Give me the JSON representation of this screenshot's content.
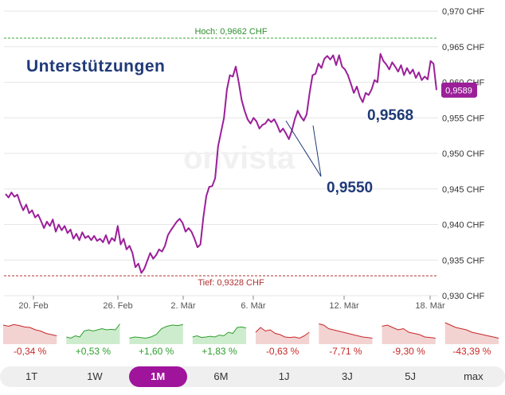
{
  "annotation": "Unterstützungen",
  "high_label": "Hoch: 0,9662 CHF",
  "low_label": "Tief: 0,9328 CHF",
  "current_label": "0,9589",
  "support_labels": [
    "0,9568",
    "0,9550"
  ],
  "watermark": "onvista",
  "chart_data": {
    "type": "line",
    "y_ticks": [
      "0,930 CHF",
      "0,935 CHF",
      "0,940 CHF",
      "0,945 CHF",
      "0,950 CHF",
      "0,955 CHF",
      "0,960 CHF",
      "0,965 CHF",
      "0,970 CHF"
    ],
    "x_ticks": [
      "20. Feb",
      "26. Feb",
      "2. Mär",
      "6. Mär",
      "12. Mär",
      "18. Mär"
    ],
    "ylim": [
      0.93,
      0.97
    ],
    "high": 0.9662,
    "low": 0.9328,
    "last": 0.9589,
    "line_color": "#9b1f99",
    "values": [
      0.9443,
      0.9438,
      0.9445,
      0.9439,
      0.9442,
      0.943,
      0.942,
      0.9428,
      0.9416,
      0.942,
      0.941,
      0.9414,
      0.9405,
      0.9395,
      0.9404,
      0.9398,
      0.9407,
      0.939,
      0.94,
      0.9392,
      0.9398,
      0.9388,
      0.9393,
      0.938,
      0.9387,
      0.9378,
      0.9389,
      0.9381,
      0.9384,
      0.9378,
      0.9384,
      0.9377,
      0.938,
      0.9375,
      0.9385,
      0.9373,
      0.9381,
      0.9377,
      0.9398,
      0.9372,
      0.938,
      0.9365,
      0.937,
      0.936,
      0.934,
      0.9345,
      0.9332,
      0.9338,
      0.9349,
      0.936,
      0.9352,
      0.9357,
      0.9365,
      0.9362,
      0.937,
      0.9385,
      0.9392,
      0.9398,
      0.9404,
      0.9408,
      0.9402,
      0.939,
      0.9395,
      0.939,
      0.938,
      0.9368,
      0.9372,
      0.941,
      0.944,
      0.9453,
      0.9454,
      0.9465,
      0.951,
      0.953,
      0.955,
      0.959,
      0.961,
      0.9608,
      0.9622,
      0.96,
      0.9575,
      0.956,
      0.9548,
      0.9542,
      0.955,
      0.9545,
      0.9535,
      0.954,
      0.9542,
      0.9548,
      0.9544,
      0.9548,
      0.954,
      0.953,
      0.9535,
      0.9528,
      0.952,
      0.9532,
      0.9548,
      0.956,
      0.9552,
      0.9546,
      0.9555,
      0.9585,
      0.961,
      0.9612,
      0.9626,
      0.962,
      0.9633,
      0.9637,
      0.9632,
      0.9638,
      0.9624,
      0.9638,
      0.9622,
      0.9618,
      0.961,
      0.9598,
      0.9585,
      0.9594,
      0.958,
      0.9572,
      0.9585,
      0.9582,
      0.959,
      0.9603,
      0.96,
      0.964,
      0.963,
      0.9625,
      0.9618,
      0.9628,
      0.9622,
      0.9615,
      0.9624,
      0.961,
      0.962,
      0.9612,
      0.9618,
      0.9606,
      0.9614,
      0.9603,
      0.9608,
      0.9604,
      0.963,
      0.9626,
      0.9589
    ],
    "point_color_note": ""
  },
  "periods": [
    {
      "perf": "-0,34 %",
      "trend": "down",
      "spark": [
        0.8,
        0.75,
        0.82,
        0.78,
        0.72,
        0.7,
        0.6,
        0.55,
        0.45,
        0.4,
        0.35
      ]
    },
    {
      "perf": "+0,53 %",
      "trend": "up",
      "spark": [
        0.3,
        0.25,
        0.35,
        0.3,
        0.55,
        0.6,
        0.55,
        0.6,
        0.65,
        0.6,
        0.62,
        0.6,
        0.85
      ]
    },
    {
      "perf": "+1,60 %",
      "trend": "up",
      "spark": [
        0.25,
        0.3,
        0.28,
        0.25,
        0.3,
        0.4,
        0.65,
        0.75,
        0.8,
        0.78,
        0.82
      ]
    },
    {
      "perf": "+1,83 %",
      "trend": "up",
      "spark": [
        0.3,
        0.35,
        0.28,
        0.3,
        0.33,
        0.3,
        0.38,
        0.35,
        0.5,
        0.45,
        0.7,
        0.72,
        0.68
      ]
    },
    {
      "perf": "-0,63 %",
      "trend": "down",
      "spark": [
        0.5,
        0.7,
        0.55,
        0.6,
        0.45,
        0.4,
        0.3,
        0.28,
        0.3,
        0.25,
        0.35,
        0.5
      ]
    },
    {
      "perf": "-7,71 %",
      "trend": "down",
      "spark": [
        0.85,
        0.8,
        0.65,
        0.6,
        0.55,
        0.5,
        0.45,
        0.4,
        0.35,
        0.3,
        0.28,
        0.25
      ]
    },
    {
      "perf": "-9,30 %",
      "trend": "down",
      "spark": [
        0.75,
        0.8,
        0.7,
        0.6,
        0.65,
        0.5,
        0.45,
        0.4,
        0.3,
        0.28,
        0.25
      ]
    },
    {
      "perf": "-43,39 %",
      "trend": "down",
      "spark": [
        0.9,
        0.8,
        0.7,
        0.65,
        0.6,
        0.5,
        0.45,
        0.4,
        0.35,
        0.3,
        0.25
      ]
    }
  ],
  "period_buttons": [
    "1T",
    "1W",
    "1M",
    "6M",
    "1J",
    "3J",
    "5J",
    "max"
  ],
  "active_period": "1M",
  "colors": {
    "line": "#9b1f99",
    "up": "#2e9e2e",
    "down": "#c82828",
    "annotation": "#1f3a78",
    "active_button": "#a0149c"
  }
}
